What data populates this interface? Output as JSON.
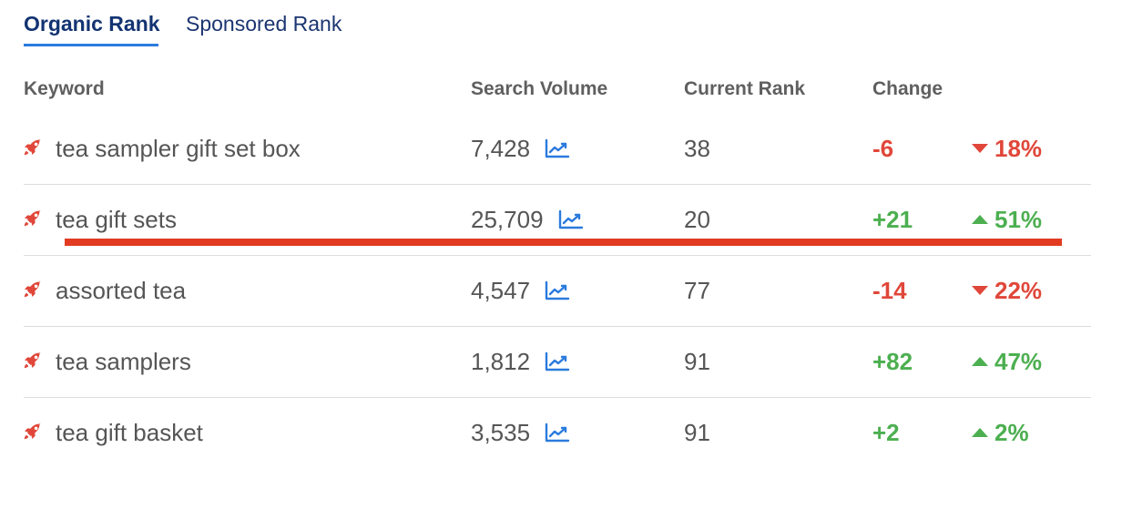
{
  "tabs": {
    "organic": "Organic Rank",
    "sponsored": "Sponsored Rank"
  },
  "columns": {
    "keyword": "Keyword",
    "search_volume": "Search Volume",
    "current_rank": "Current Rank",
    "change": "Change"
  },
  "colors": {
    "accent": "#2b7bde",
    "negative": "#e0473a",
    "positive": "#4caf50",
    "highlight": "#e23b22"
  },
  "rows": [
    {
      "keyword": "tea sampler gift set box",
      "search_volume": "7,428",
      "current_rank": "38",
      "change": "-6",
      "percent": "18%",
      "direction": "down"
    },
    {
      "keyword": "tea gift sets",
      "search_volume": "25,709",
      "current_rank": "20",
      "change": "+21",
      "percent": "51%",
      "direction": "up"
    },
    {
      "keyword": "assorted tea",
      "search_volume": "4,547",
      "current_rank": "77",
      "change": "-14",
      "percent": "22%",
      "direction": "down"
    },
    {
      "keyword": "tea samplers",
      "search_volume": "1,812",
      "current_rank": "91",
      "change": "+82",
      "percent": "47%",
      "direction": "up"
    },
    {
      "keyword": "tea gift basket",
      "search_volume": "3,535",
      "current_rank": "91",
      "change": "+2",
      "percent": "2%",
      "direction": "up"
    }
  ],
  "icons": {
    "keyword_icon": "rocket-icon",
    "trend_icon": "trend-chart-icon",
    "up_arrow": "triangle-up-icon",
    "down_arrow": "triangle-down-icon"
  }
}
